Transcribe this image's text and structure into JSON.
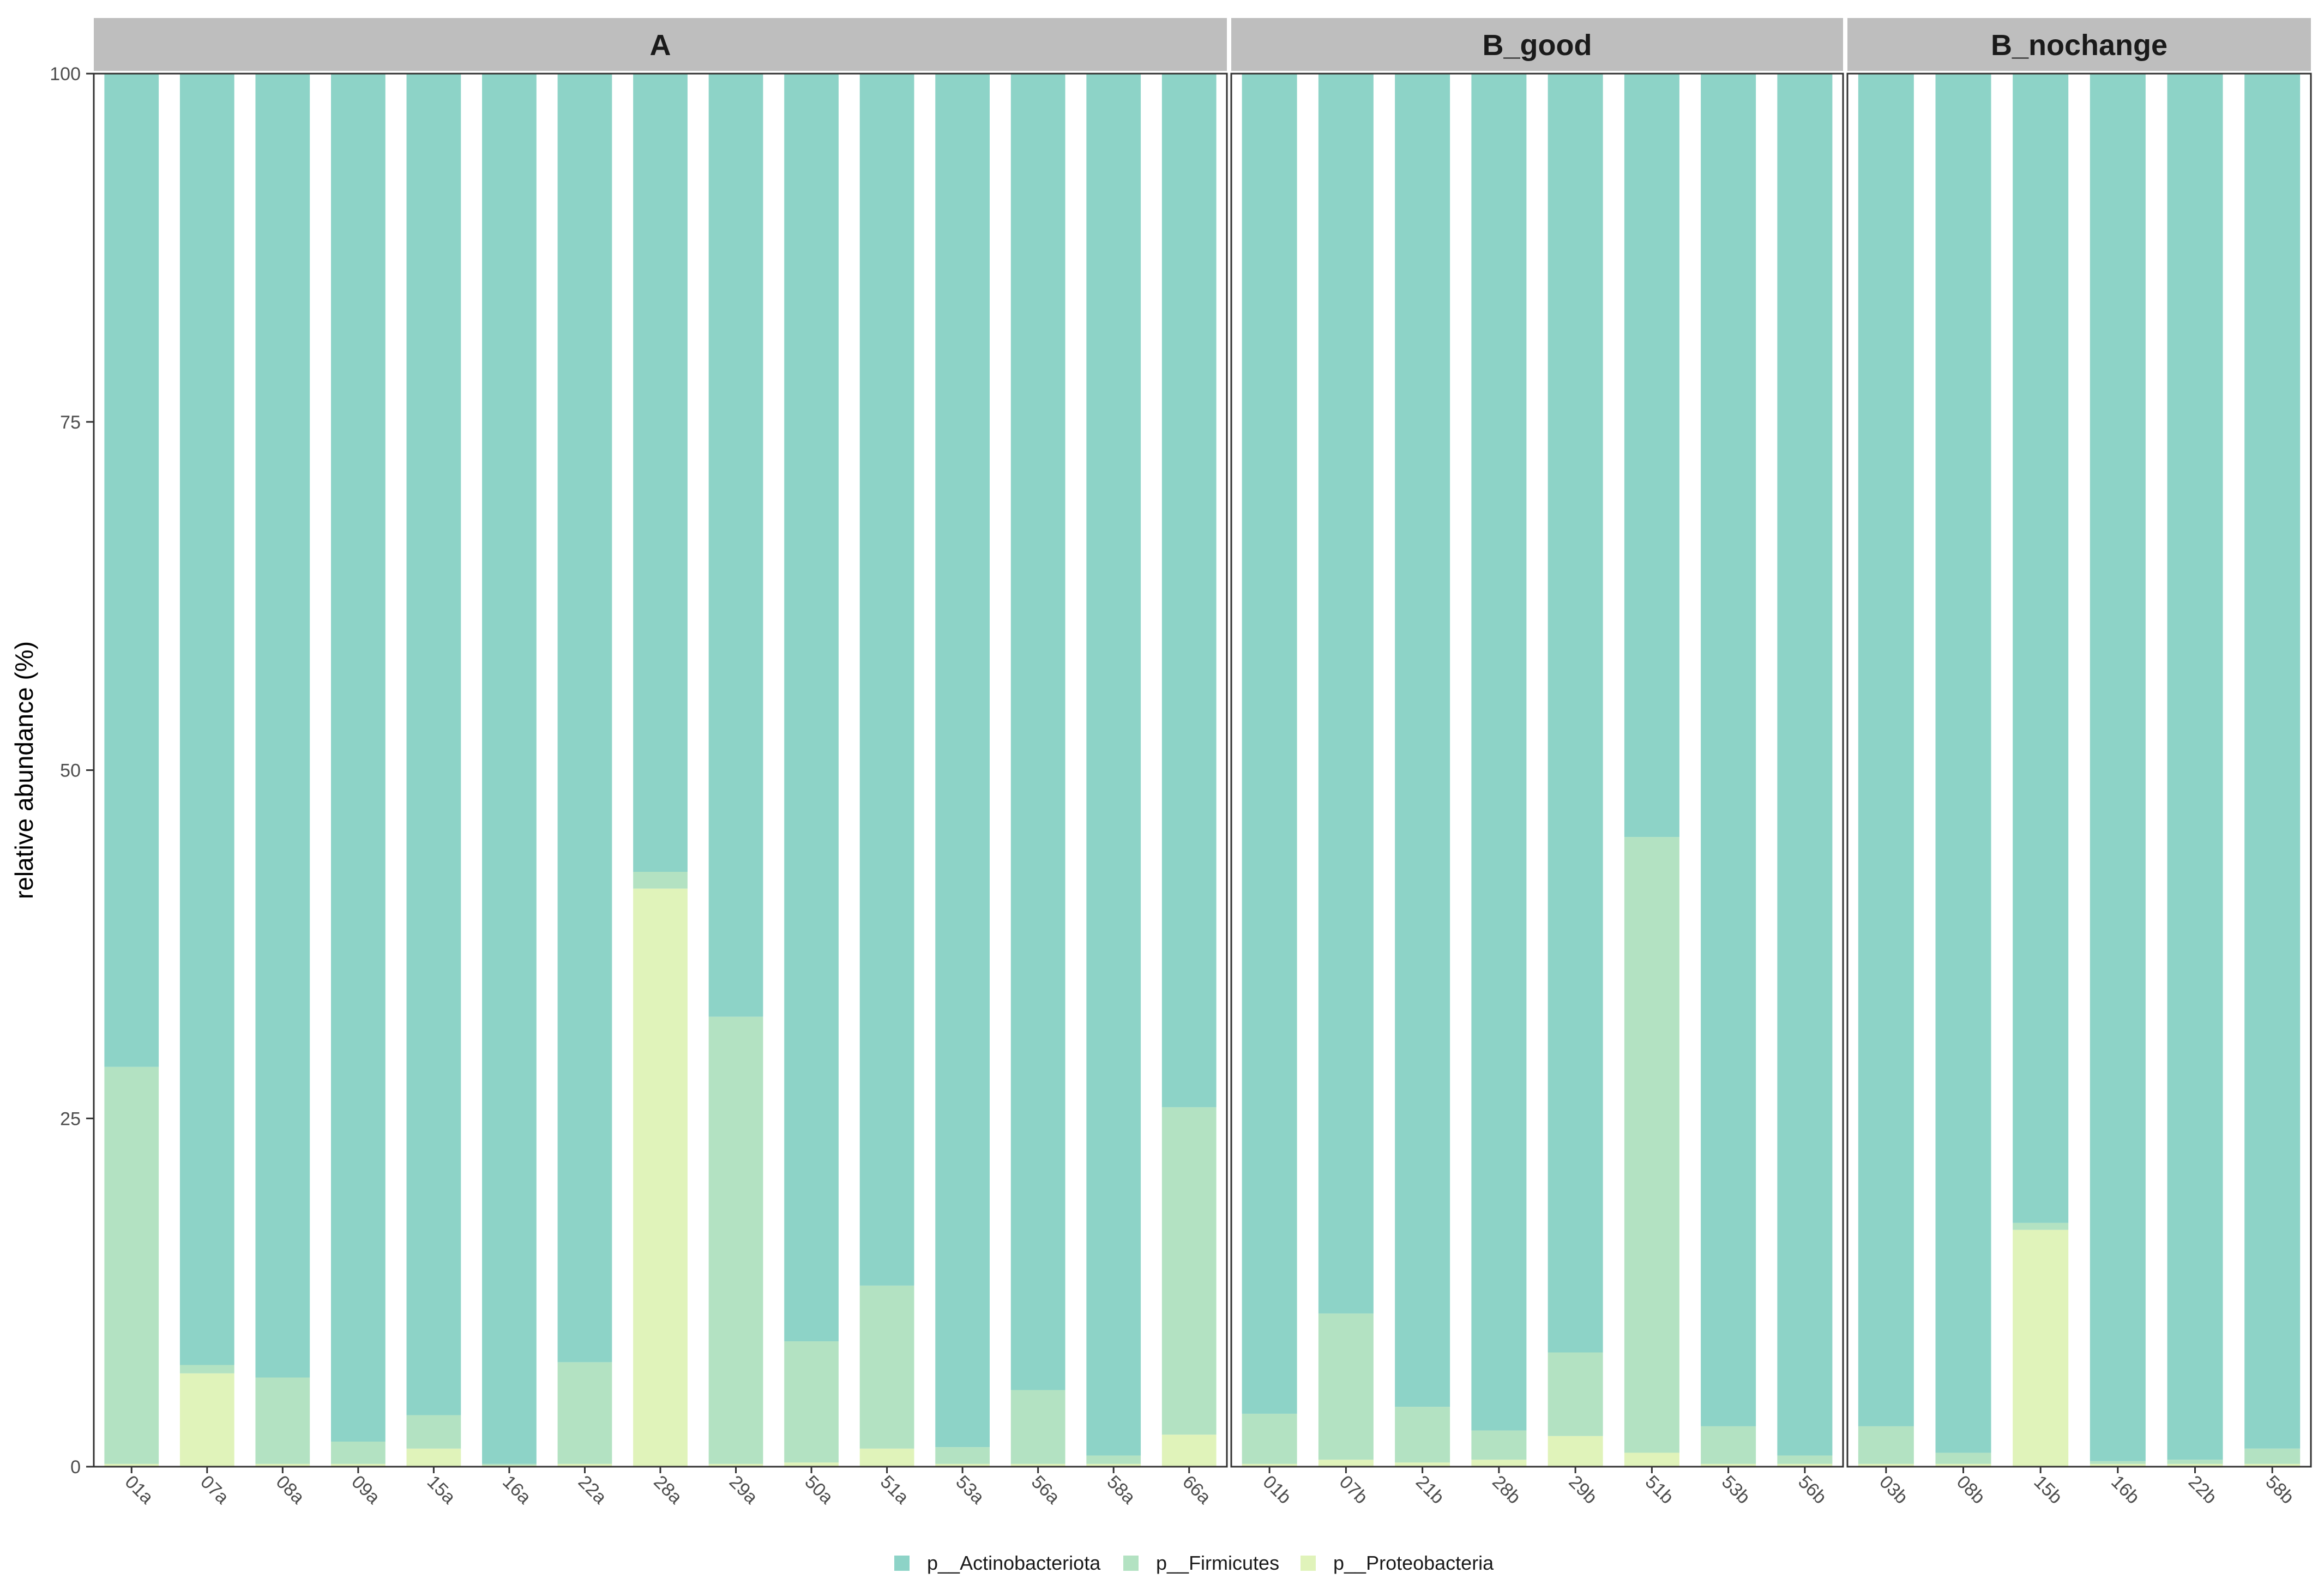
{
  "chart_data": {
    "type": "bar",
    "stacked": true,
    "ylabel": "relative abundance (%)",
    "xlabel": "",
    "ylim": [
      0,
      100
    ],
    "y_ticks": [
      0,
      25,
      50,
      75,
      100
    ],
    "grid": false,
    "legend_position": "bottom",
    "series": [
      {
        "name": "p__Actinobacteriota",
        "color": "#8DD3C7"
      },
      {
        "name": "p__Firmicutes",
        "color": "#B3E2C2"
      },
      {
        "name": "p__Proteobacteria",
        "color": "#E0F3BA"
      }
    ],
    "facets": [
      {
        "label": "A",
        "samples": [
          {
            "name": "01a",
            "values": [
              71.3,
              28.5,
              0.2
            ]
          },
          {
            "name": "07a",
            "values": [
              92.7,
              0.6,
              6.7
            ]
          },
          {
            "name": "08a",
            "values": [
              93.6,
              6.2,
              0.2
            ]
          },
          {
            "name": "09a",
            "values": [
              98.2,
              1.6,
              0.2
            ]
          },
          {
            "name": "15a",
            "values": [
              96.3,
              2.4,
              1.3
            ]
          },
          {
            "name": "16a",
            "values": [
              99.8,
              0.1,
              0.1
            ]
          },
          {
            "name": "22a",
            "values": [
              92.5,
              7.3,
              0.2
            ]
          },
          {
            "name": "28a",
            "values": [
              57.3,
              1.2,
              41.5
            ]
          },
          {
            "name": "29a",
            "values": [
              67.7,
              32.1,
              0.2
            ]
          },
          {
            "name": "50a",
            "values": [
              91.0,
              8.7,
              0.3
            ]
          },
          {
            "name": "51a",
            "values": [
              87.0,
              11.7,
              1.3
            ]
          },
          {
            "name": "53a",
            "values": [
              98.6,
              1.2,
              0.2
            ]
          },
          {
            "name": "56a",
            "values": [
              94.5,
              5.3,
              0.2
            ]
          },
          {
            "name": "58a",
            "values": [
              99.2,
              0.6,
              0.2
            ]
          },
          {
            "name": "66a",
            "values": [
              74.2,
              23.5,
              2.3
            ]
          }
        ]
      },
      {
        "label": "B_good",
        "samples": [
          {
            "name": "01b",
            "values": [
              96.2,
              3.6,
              0.2
            ]
          },
          {
            "name": "07b",
            "values": [
              89.0,
              10.5,
              0.5
            ]
          },
          {
            "name": "21b",
            "values": [
              95.7,
              4.0,
              0.3
            ]
          },
          {
            "name": "28b",
            "values": [
              97.4,
              2.1,
              0.5
            ]
          },
          {
            "name": "29b",
            "values": [
              91.8,
              6.0,
              2.2
            ]
          },
          {
            "name": "51b",
            "values": [
              54.8,
              44.2,
              1.0
            ]
          },
          {
            "name": "53b",
            "values": [
              97.1,
              2.7,
              0.2
            ]
          },
          {
            "name": "56b",
            "values": [
              99.2,
              0.6,
              0.2
            ]
          }
        ]
      },
      {
        "label": "B_nochange",
        "samples": [
          {
            "name": "03b",
            "values": [
              97.1,
              2.7,
              0.2
            ]
          },
          {
            "name": "08b",
            "values": [
              99.0,
              0.8,
              0.2
            ]
          },
          {
            "name": "15b",
            "values": [
              82.5,
              0.5,
              17.0
            ]
          },
          {
            "name": "16b",
            "values": [
              99.6,
              0.2,
              0.2
            ]
          },
          {
            "name": "22b",
            "values": [
              99.5,
              0.3,
              0.2
            ]
          },
          {
            "name": "58b",
            "values": [
              98.7,
              1.1,
              0.2
            ]
          }
        ]
      }
    ]
  },
  "colors": {
    "strip_background": "#BEBEBE",
    "panel_border": "#333333",
    "axis_text": "#4d4d4d"
  }
}
